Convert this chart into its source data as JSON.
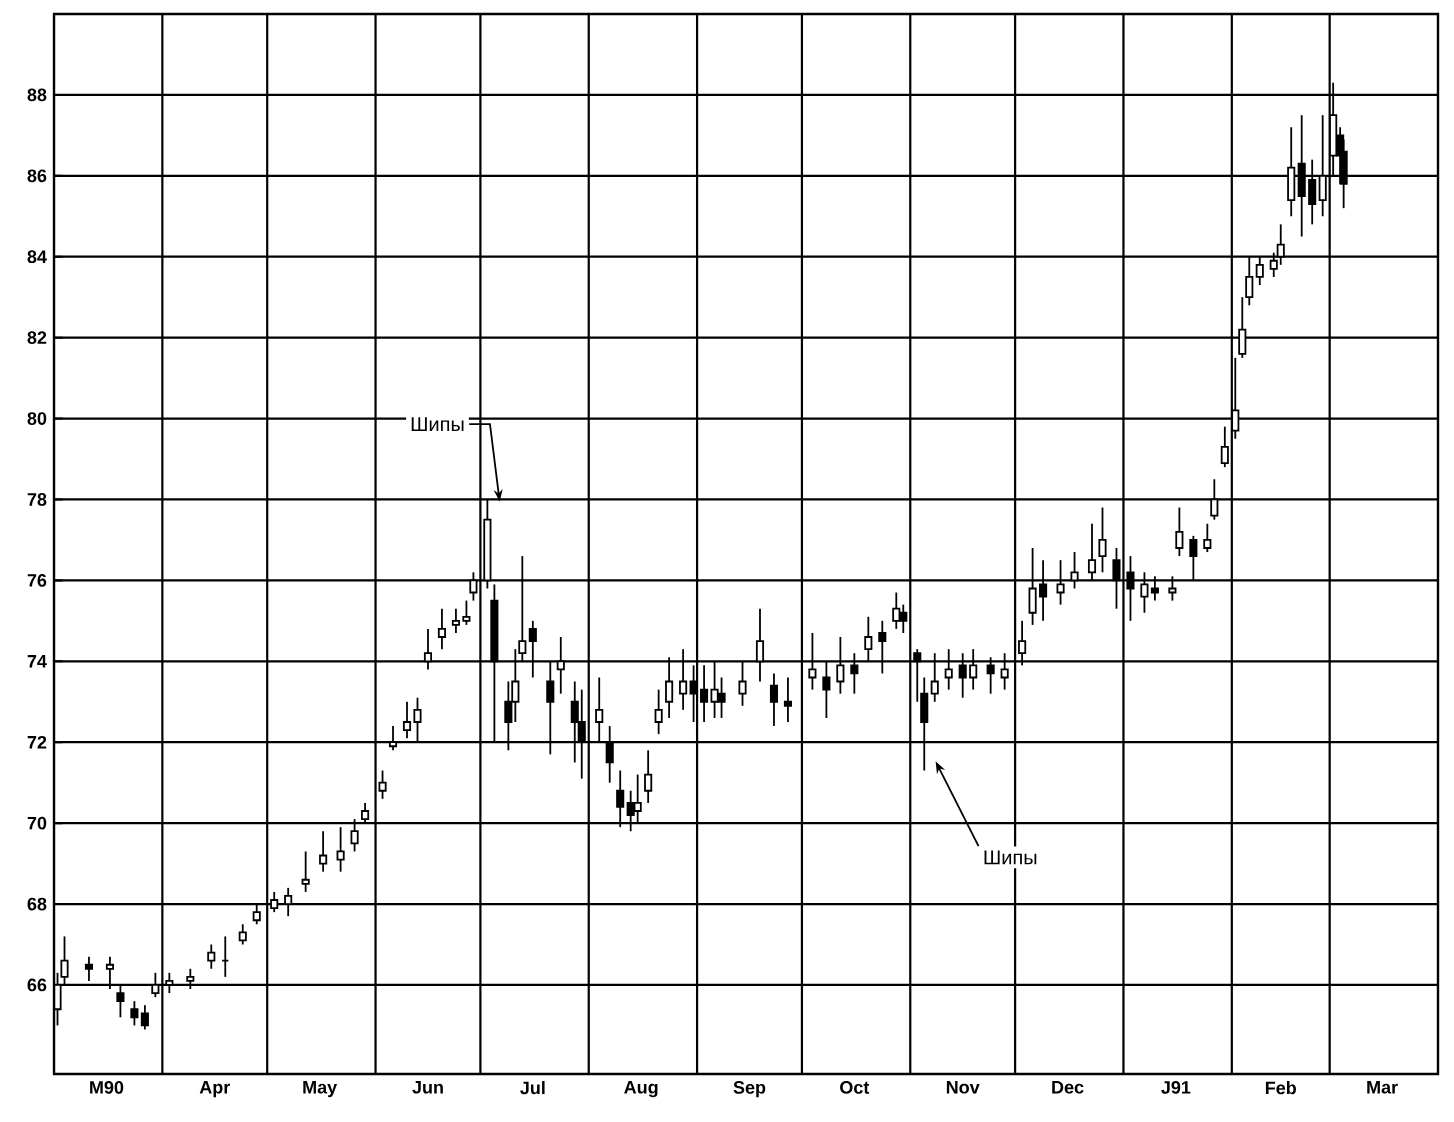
{
  "chart_data": {
    "type": "candlestick",
    "x": [
      "1990-03-02",
      "1990-03-04",
      "1990-03-11",
      "1990-03-17",
      "1990-03-20",
      "1990-03-24",
      "1990-03-27",
      "1990-03-30",
      "1990-04-03",
      "1990-04-09",
      "1990-04-15",
      "1990-04-19",
      "1990-04-24",
      "1990-04-28",
      "1990-05-03",
      "1990-05-07",
      "1990-05-12",
      "1990-05-17",
      "1990-05-22",
      "1990-05-26",
      "1990-05-29",
      "1990-06-03",
      "1990-06-06",
      "1990-06-10",
      "1990-06-13",
      "1990-06-16",
      "1990-06-20",
      "1990-06-24",
      "1990-06-27",
      "1990-06-29",
      "1990-07-03",
      "1990-07-05",
      "1990-07-09",
      "1990-07-11",
      "1990-07-13",
      "1990-07-16",
      "1990-07-21",
      "1990-07-24",
      "1990-07-28",
      "1990-07-30",
      "1990-08-04",
      "1990-08-07",
      "1990-08-10",
      "1990-08-13",
      "1990-08-15",
      "1990-08-18",
      "1990-08-21",
      "1990-08-24",
      "1990-08-28",
      "1990-08-31",
      "1990-09-03",
      "1990-09-06",
      "1990-09-08",
      "1990-09-14",
      "1990-09-19",
      "1990-09-23",
      "1990-09-27",
      "1990-10-04",
      "1990-10-08",
      "1990-10-12",
      "1990-10-16",
      "1990-10-20",
      "1990-10-24",
      "1990-10-28",
      "1990-10-30",
      "1990-11-03",
      "1990-11-05",
      "1990-11-08",
      "1990-11-12",
      "1990-11-16",
      "1990-11-19",
      "1990-11-24",
      "1990-11-28",
      "1990-12-03",
      "1990-12-06",
      "1990-12-09",
      "1990-12-14",
      "1990-12-18",
      "1990-12-23",
      "1990-12-26",
      "1990-12-30",
      "1991-01-03",
      "1991-01-07",
      "1991-01-10",
      "1991-01-15",
      "1991-01-17",
      "1991-01-21",
      "1991-01-25",
      "1991-01-27",
      "1991-01-30",
      "1991-02-02",
      "1991-02-04",
      "1991-02-06",
      "1991-02-09",
      "1991-02-13",
      "1991-02-15",
      "1991-02-18",
      "1991-02-21",
      "1991-02-24",
      "1991-02-27",
      "1991-03-02",
      "1991-03-04",
      "1991-03-05"
    ],
    "ohlc": [
      [
        65.4,
        66.3,
        65.0,
        66.0
      ],
      [
        66.2,
        67.2,
        66.0,
        66.6
      ],
      [
        66.5,
        66.7,
        66.1,
        66.4
      ],
      [
        66.4,
        66.7,
        65.9,
        66.5
      ],
      [
        65.8,
        66.0,
        65.2,
        65.6
      ],
      [
        65.4,
        65.6,
        65.0,
        65.2
      ],
      [
        65.3,
        65.5,
        64.9,
        65.0
      ],
      [
        65.8,
        66.3,
        65.7,
        66.0
      ],
      [
        66.0,
        66.3,
        65.8,
        66.1
      ],
      [
        66.1,
        66.4,
        65.9,
        66.2
      ],
      [
        66.6,
        67.0,
        66.4,
        66.8
      ],
      [
        66.6,
        67.2,
        66.2,
        66.6
      ],
      [
        67.1,
        67.5,
        67.0,
        67.3
      ],
      [
        67.6,
        68.0,
        67.5,
        67.8
      ],
      [
        67.9,
        68.3,
        67.8,
        68.1
      ],
      [
        68.0,
        68.4,
        67.7,
        68.2
      ],
      [
        68.5,
        69.3,
        68.3,
        68.6
      ],
      [
        69.0,
        69.8,
        68.8,
        69.2
      ],
      [
        69.1,
        69.9,
        68.8,
        69.3
      ],
      [
        69.5,
        70.1,
        69.3,
        69.8
      ],
      [
        70.1,
        70.5,
        70.0,
        70.3
      ],
      [
        70.8,
        71.3,
        70.6,
        71.0
      ],
      [
        71.9,
        72.4,
        71.8,
        72.0
      ],
      [
        72.3,
        73.0,
        72.1,
        72.5
      ],
      [
        72.5,
        73.1,
        72.0,
        72.8
      ],
      [
        74.0,
        74.8,
        73.8,
        74.2
      ],
      [
        74.6,
        75.3,
        74.3,
        74.8
      ],
      [
        74.9,
        75.3,
        74.7,
        75.0
      ],
      [
        75.0,
        75.5,
        74.9,
        75.1
      ],
      [
        75.7,
        76.2,
        75.5,
        76.0
      ],
      [
        76.0,
        78.0,
        75.8,
        77.5
      ],
      [
        75.5,
        75.9,
        72.0,
        74.0
      ],
      [
        73.0,
        73.5,
        71.8,
        72.5
      ],
      [
        73.0,
        74.3,
        72.5,
        73.5
      ],
      [
        74.2,
        76.6,
        74.0,
        74.5
      ],
      [
        74.8,
        75.0,
        73.6,
        74.5
      ],
      [
        73.5,
        74.0,
        71.7,
        73.0
      ],
      [
        73.8,
        74.6,
        73.2,
        74.0
      ],
      [
        73.0,
        73.5,
        71.5,
        72.5
      ],
      [
        72.5,
        73.3,
        71.1,
        72.0
      ],
      [
        72.5,
        73.6,
        72.0,
        72.8
      ],
      [
        72.0,
        72.4,
        71.0,
        71.5
      ],
      [
        70.8,
        71.3,
        69.9,
        70.4
      ],
      [
        70.5,
        70.8,
        69.8,
        70.2
      ],
      [
        70.3,
        71.2,
        70.0,
        70.5
      ],
      [
        70.8,
        71.8,
        70.5,
        71.2
      ],
      [
        72.5,
        73.3,
        72.2,
        72.8
      ],
      [
        73.0,
        74.1,
        72.6,
        73.5
      ],
      [
        73.2,
        74.3,
        72.8,
        73.5
      ],
      [
        73.5,
        73.9,
        72.5,
        73.2
      ],
      [
        73.3,
        73.9,
        72.5,
        73.0
      ],
      [
        73.0,
        74.0,
        72.6,
        73.3
      ],
      [
        73.2,
        73.6,
        72.6,
        73.0
      ],
      [
        73.2,
        74.0,
        72.9,
        73.5
      ],
      [
        74.0,
        75.3,
        73.5,
        74.5
      ],
      [
        73.4,
        73.7,
        72.4,
        73.0
      ],
      [
        73.0,
        73.6,
        72.5,
        72.9
      ],
      [
        73.6,
        74.7,
        73.3,
        73.8
      ],
      [
        73.6,
        74.0,
        72.6,
        73.3
      ],
      [
        73.5,
        74.6,
        73.2,
        73.9
      ],
      [
        73.9,
        74.2,
        73.2,
        73.7
      ],
      [
        74.3,
        75.1,
        74.0,
        74.6
      ],
      [
        74.7,
        75.0,
        73.7,
        74.5
      ],
      [
        75.0,
        75.7,
        74.8,
        75.3
      ],
      [
        75.2,
        75.4,
        74.7,
        75.0
      ],
      [
        74.2,
        74.3,
        73.0,
        74.0
      ],
      [
        73.2,
        73.6,
        71.3,
        72.5
      ],
      [
        73.2,
        74.2,
        73.0,
        73.5
      ],
      [
        73.6,
        74.3,
        73.3,
        73.8
      ],
      [
        73.9,
        74.2,
        73.1,
        73.6
      ],
      [
        73.6,
        74.3,
        73.3,
        73.9
      ],
      [
        73.9,
        74.1,
        73.2,
        73.7
      ],
      [
        73.6,
        74.2,
        73.3,
        73.8
      ],
      [
        74.2,
        75.0,
        73.9,
        74.5
      ],
      [
        75.2,
        76.8,
        74.9,
        75.8
      ],
      [
        75.9,
        76.5,
        75.0,
        75.6
      ],
      [
        75.7,
        76.5,
        75.4,
        75.9
      ],
      [
        76.0,
        76.7,
        75.8,
        76.2
      ],
      [
        76.2,
        77.4,
        76.0,
        76.5
      ],
      [
        76.6,
        77.8,
        76.2,
        77.0
      ],
      [
        76.5,
        76.8,
        75.3,
        76.0
      ],
      [
        76.2,
        76.6,
        75.0,
        75.8
      ],
      [
        75.6,
        76.2,
        75.2,
        75.9
      ],
      [
        75.8,
        76.1,
        75.5,
        75.7
      ],
      [
        75.7,
        76.1,
        75.5,
        75.8
      ],
      [
        76.8,
        77.8,
        76.6,
        77.2
      ],
      [
        77.0,
        77.1,
        76.0,
        76.6
      ],
      [
        76.8,
        77.4,
        76.7,
        77.0
      ],
      [
        77.6,
        78.5,
        77.5,
        78.0
      ],
      [
        78.9,
        79.8,
        78.8,
        79.3
      ],
      [
        79.7,
        81.5,
        79.5,
        80.2
      ],
      [
        81.6,
        83.0,
        81.5,
        82.2
      ],
      [
        83.0,
        84.0,
        82.8,
        83.5
      ],
      [
        83.5,
        84.0,
        83.3,
        83.8
      ],
      [
        83.7,
        84.1,
        83.5,
        83.9
      ],
      [
        84.0,
        84.8,
        83.8,
        84.3
      ],
      [
        85.4,
        87.2,
        85.0,
        86.2
      ],
      [
        86.3,
        87.5,
        84.5,
        85.5
      ],
      [
        85.9,
        86.4,
        84.8,
        85.3
      ],
      [
        85.4,
        87.5,
        85.0,
        86.0
      ],
      [
        86.5,
        88.3,
        86.0,
        87.5
      ],
      [
        87.0,
        87.2,
        85.8,
        86.5
      ],
      [
        86.6,
        86.9,
        85.2,
        85.8
      ]
    ],
    "color": "#000000",
    "xlim": [
      "1990-03-01",
      "1991-04-01"
    ],
    "xticks": [
      {
        "value": "1990-03-16",
        "label": "M90"
      },
      {
        "value": "1990-04-16",
        "label": "Apr"
      },
      {
        "value": "1990-05-16",
        "label": "May"
      },
      {
        "value": "1990-06-16",
        "label": "Jun"
      },
      {
        "value": "1990-07-16",
        "label": "Jul"
      },
      {
        "value": "1990-08-16",
        "label": "Aug"
      },
      {
        "value": "1990-09-16",
        "label": "Sep"
      },
      {
        "value": "1990-10-16",
        "label": "Oct"
      },
      {
        "value": "1990-11-16",
        "label": "Nov"
      },
      {
        "value": "1990-12-16",
        "label": "Dec"
      },
      {
        "value": "1991-01-16",
        "label": "J91"
      },
      {
        "value": "1991-02-15",
        "label": "Feb"
      },
      {
        "value": "1991-03-16",
        "label": "Mar"
      },
      {
        "value": "1990-04-01",
        "label": null
      },
      {
        "value": "1990-05-01",
        "label": null
      },
      {
        "value": "1990-06-01",
        "label": null
      },
      {
        "value": "1990-07-01",
        "label": null
      },
      {
        "value": "1990-08-01",
        "label": null
      },
      {
        "value": "1990-09-01",
        "label": null
      },
      {
        "value": "1990-10-01",
        "label": null
      },
      {
        "value": "1990-11-01",
        "label": null
      },
      {
        "value": "1990-12-01",
        "label": null
      },
      {
        "value": "1991-01-01",
        "label": null
      },
      {
        "value": "1991-02-01",
        "label": null
      },
      {
        "value": "1991-03-01",
        "label": null
      }
    ],
    "ylim": [
      63.8,
      90
    ],
    "yticks": [
      66,
      68,
      70,
      72,
      74,
      76,
      78,
      80,
      82,
      84,
      86,
      88
    ],
    "grid": true,
    "annotations": [
      "Шипы",
      "Шипы"
    ]
  }
}
